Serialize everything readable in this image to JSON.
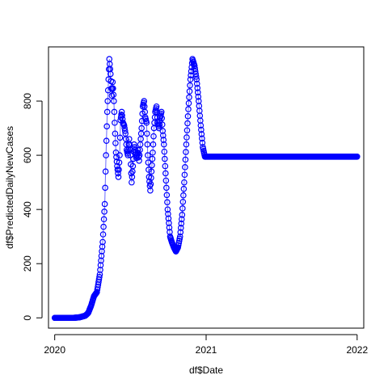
{
  "chart_data": {
    "type": "scatter",
    "title": "",
    "xlabel": "df$Date",
    "ylabel": "df$PredictedDailyNewCases",
    "x_ticks": [
      "2020",
      "2021",
      "2022"
    ],
    "x_tick_values": [
      "2020-01-01",
      "2021-01-01",
      "2022-01-01"
    ],
    "y_ticks": [
      "0",
      "200",
      "400",
      "600",
      "800"
    ],
    "y_tick_values": [
      0,
      200,
      400,
      600,
      800
    ],
    "xlim": [
      "2019-12-17",
      "2022-01-17"
    ],
    "ylim": [
      -38,
      1000
    ],
    "grid": false,
    "legend": "none",
    "colors": {
      "points": "#0000ff",
      "line": "#6a6aff",
      "axis": "#000000"
    },
    "series": [
      {
        "points": [
          [
            "2020-01-01",
            0
          ],
          [
            "2020-01-15",
            0
          ],
          [
            "2020-02-01",
            0
          ],
          [
            "2020-02-15",
            0
          ],
          [
            "2020-03-01",
            2
          ],
          [
            "2020-03-08",
            5
          ],
          [
            "2020-03-15",
            8
          ],
          [
            "2020-03-22",
            18
          ],
          [
            "2020-03-29",
            45
          ],
          [
            "2020-04-05",
            80
          ],
          [
            "2020-04-12",
            95
          ],
          [
            "2020-04-19",
            160
          ],
          [
            "2020-04-26",
            280
          ],
          [
            "2020-05-01",
            420
          ],
          [
            "2020-05-04",
            600
          ],
          [
            "2020-05-07",
            760
          ],
          [
            "2020-05-10",
            880
          ],
          [
            "2020-05-12",
            955
          ],
          [
            "2020-05-15",
            900
          ],
          [
            "2020-05-18",
            820
          ],
          [
            "2020-05-20",
            870
          ],
          [
            "2020-05-23",
            800
          ],
          [
            "2020-05-26",
            680
          ],
          [
            "2020-05-28",
            610
          ],
          [
            "2020-05-31",
            560
          ],
          [
            "2020-06-03",
            520
          ],
          [
            "2020-06-06",
            600
          ],
          [
            "2020-06-08",
            730
          ],
          [
            "2020-06-11",
            760
          ],
          [
            "2020-06-14",
            720
          ],
          [
            "2020-06-17",
            710
          ],
          [
            "2020-06-20",
            680
          ],
          [
            "2020-06-23",
            620
          ],
          [
            "2020-06-26",
            600
          ],
          [
            "2020-06-29",
            660
          ],
          [
            "2020-07-02",
            600
          ],
          [
            "2020-07-05",
            500
          ],
          [
            "2020-07-08",
            560
          ],
          [
            "2020-07-11",
            640
          ],
          [
            "2020-07-14",
            610
          ],
          [
            "2020-07-17",
            590
          ],
          [
            "2020-07-20",
            620
          ],
          [
            "2020-07-23",
            580
          ],
          [
            "2020-07-26",
            640
          ],
          [
            "2020-07-29",
            700
          ],
          [
            "2020-08-01",
            780
          ],
          [
            "2020-08-04",
            800
          ],
          [
            "2020-08-07",
            740
          ],
          [
            "2020-08-10",
            720
          ],
          [
            "2020-08-13",
            600
          ],
          [
            "2020-08-16",
            520
          ],
          [
            "2020-08-19",
            470
          ],
          [
            "2020-08-22",
            540
          ],
          [
            "2020-08-25",
            610
          ],
          [
            "2020-08-28",
            700
          ],
          [
            "2020-08-31",
            760
          ],
          [
            "2020-09-03",
            780
          ],
          [
            "2020-09-06",
            720
          ],
          [
            "2020-09-09",
            700
          ],
          [
            "2020-09-12",
            740
          ],
          [
            "2020-09-15",
            760
          ],
          [
            "2020-09-18",
            690
          ],
          [
            "2020-09-21",
            640
          ],
          [
            "2020-09-24",
            560
          ],
          [
            "2020-09-27",
            480
          ],
          [
            "2020-09-30",
            400
          ],
          [
            "2020-10-03",
            350
          ],
          [
            "2020-10-06",
            300
          ],
          [
            "2020-10-10",
            280
          ],
          [
            "2020-10-15",
            260
          ],
          [
            "2020-10-20",
            245
          ],
          [
            "2020-10-25",
            260
          ],
          [
            "2020-10-30",
            300
          ],
          [
            "2020-11-04",
            380
          ],
          [
            "2020-11-09",
            500
          ],
          [
            "2020-11-14",
            640
          ],
          [
            "2020-11-19",
            770
          ],
          [
            "2020-11-24",
            880
          ],
          [
            "2020-11-29",
            955
          ],
          [
            "2020-12-04",
            930
          ],
          [
            "2020-12-09",
            880
          ],
          [
            "2020-12-14",
            800
          ],
          [
            "2020-12-19",
            710
          ],
          [
            "2020-12-24",
            630
          ],
          [
            "2020-12-29",
            595
          ],
          [
            "2021-01-05",
            595
          ],
          [
            "2021-01-20",
            595
          ],
          [
            "2021-02-05",
            595
          ],
          [
            "2021-02-20",
            595
          ],
          [
            "2021-03-05",
            595
          ],
          [
            "2021-03-20",
            595
          ],
          [
            "2021-04-05",
            595
          ],
          [
            "2021-04-20",
            595
          ],
          [
            "2021-05-05",
            595
          ],
          [
            "2021-05-20",
            595
          ],
          [
            "2021-06-05",
            595
          ],
          [
            "2021-06-20",
            595
          ],
          [
            "2021-07-05",
            595
          ],
          [
            "2021-07-20",
            595
          ],
          [
            "2021-08-05",
            595
          ],
          [
            "2021-08-20",
            595
          ],
          [
            "2021-09-05",
            595
          ],
          [
            "2021-09-20",
            595
          ],
          [
            "2021-10-05",
            595
          ],
          [
            "2021-10-20",
            595
          ],
          [
            "2021-11-05",
            595
          ],
          [
            "2021-11-20",
            595
          ],
          [
            "2021-12-05",
            595
          ],
          [
            "2021-12-20",
            595
          ],
          [
            "2022-01-01",
            595
          ]
        ]
      }
    ]
  }
}
